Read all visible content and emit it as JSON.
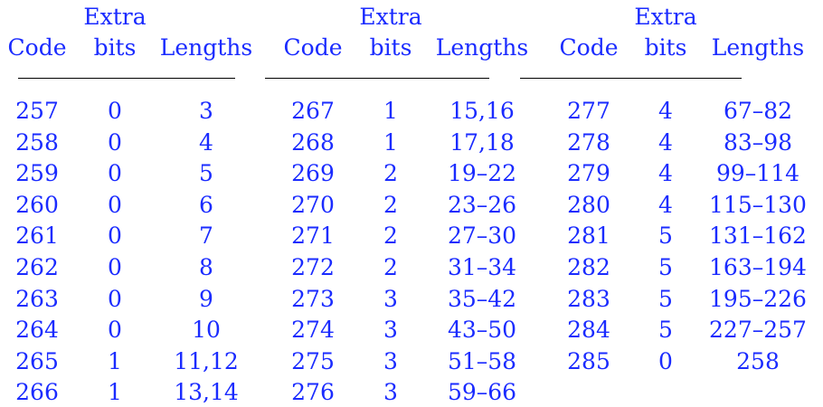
{
  "headers": {
    "extra_top": "Extra",
    "code": "Code",
    "bits": "bits",
    "lengths": "Lengths"
  },
  "groups": [
    {
      "rows": [
        {
          "code": "257",
          "bits": "0",
          "lengths": "3"
        },
        {
          "code": "258",
          "bits": "0",
          "lengths": "4"
        },
        {
          "code": "259",
          "bits": "0",
          "lengths": "5"
        },
        {
          "code": "260",
          "bits": "0",
          "lengths": "6"
        },
        {
          "code": "261",
          "bits": "0",
          "lengths": "7"
        },
        {
          "code": "262",
          "bits": "0",
          "lengths": "8"
        },
        {
          "code": "263",
          "bits": "0",
          "lengths": "9"
        },
        {
          "code": "264",
          "bits": "0",
          "lengths": "10"
        },
        {
          "code": "265",
          "bits": "1",
          "lengths": "11,12"
        },
        {
          "code": "266",
          "bits": "1",
          "lengths": "13,14"
        }
      ]
    },
    {
      "rows": [
        {
          "code": "267",
          "bits": "1",
          "lengths": "15,16"
        },
        {
          "code": "268",
          "bits": "1",
          "lengths": "17,18"
        },
        {
          "code": "269",
          "bits": "2",
          "lengths": "19–22"
        },
        {
          "code": "270",
          "bits": "2",
          "lengths": "23–26"
        },
        {
          "code": "271",
          "bits": "2",
          "lengths": "27–30"
        },
        {
          "code": "272",
          "bits": "2",
          "lengths": "31–34"
        },
        {
          "code": "273",
          "bits": "3",
          "lengths": "35–42"
        },
        {
          "code": "274",
          "bits": "3",
          "lengths": "43–50"
        },
        {
          "code": "275",
          "bits": "3",
          "lengths": "51–58"
        },
        {
          "code": "276",
          "bits": "3",
          "lengths": "59–66"
        }
      ]
    },
    {
      "rows": [
        {
          "code": "277",
          "bits": "4",
          "lengths": "67–82"
        },
        {
          "code": "278",
          "bits": "4",
          "lengths": "83–98"
        },
        {
          "code": "279",
          "bits": "4",
          "lengths": "99–114"
        },
        {
          "code": "280",
          "bits": "4",
          "lengths": "115–130"
        },
        {
          "code": "281",
          "bits": "5",
          "lengths": "131–162"
        },
        {
          "code": "282",
          "bits": "5",
          "lengths": "163–194"
        },
        {
          "code": "283",
          "bits": "5",
          "lengths": "195–226"
        },
        {
          "code": "284",
          "bits": "5",
          "lengths": "227–257"
        },
        {
          "code": "285",
          "bits": "0",
          "lengths": "258"
        }
      ]
    }
  ]
}
